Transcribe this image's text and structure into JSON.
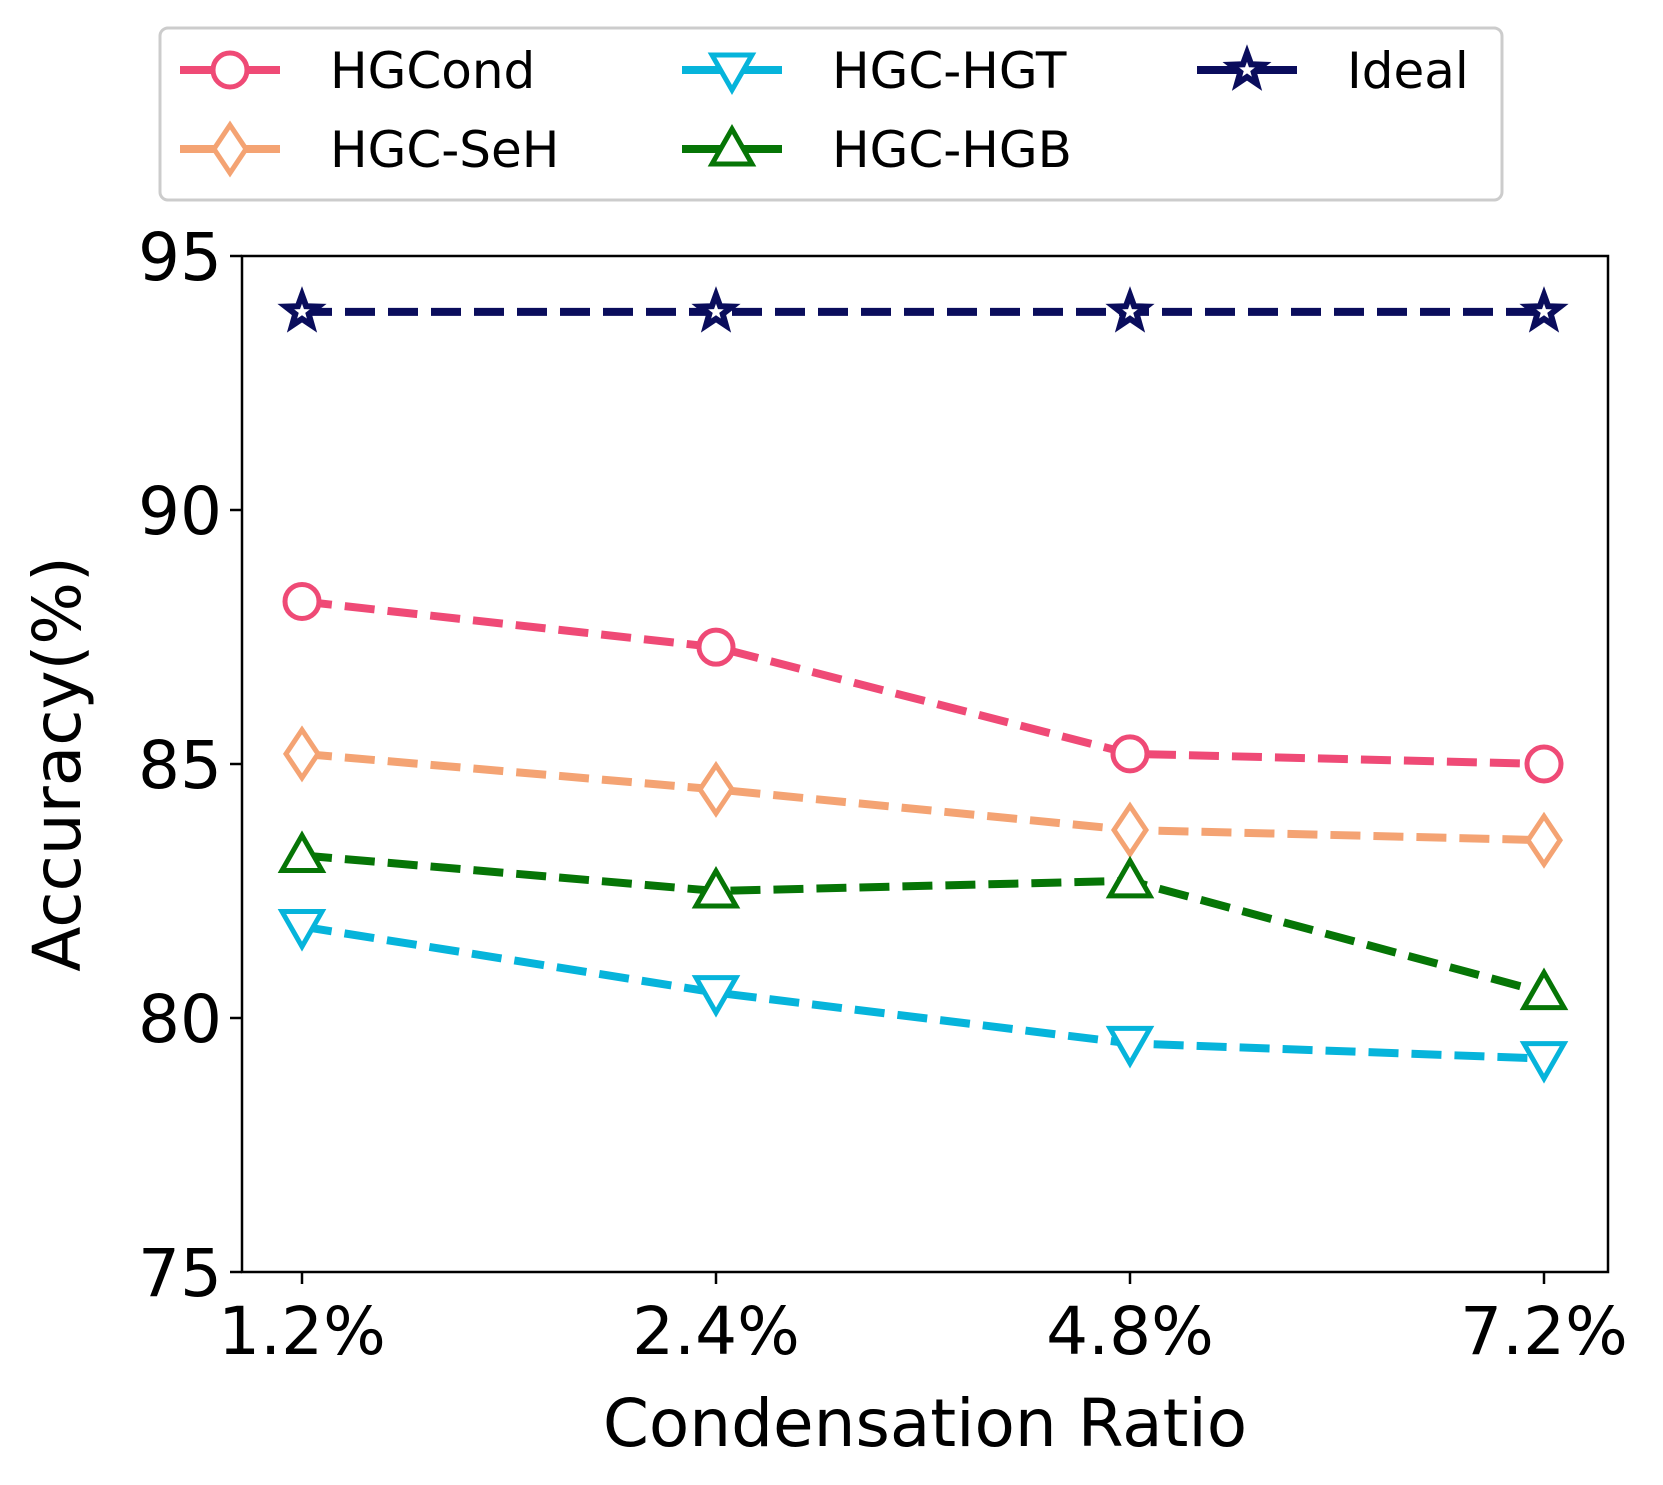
{
  "chart_data": {
    "type": "line",
    "title": "",
    "xlabel": "Condensation Ratio",
    "ylabel": "Accuracy(%)",
    "categories": [
      "1.2%",
      "2.4%",
      "4.8%",
      "7.2%"
    ],
    "ylim": [
      75,
      95
    ],
    "yticks": [
      75,
      80,
      85,
      90,
      95
    ],
    "grid": false,
    "legend_position": "top",
    "series": [
      {
        "name": "HGCond",
        "values": [
          88.2,
          87.3,
          85.2,
          85.0
        ],
        "color": "#ef4a76",
        "marker": "circle"
      },
      {
        "name": "HGC-SeH",
        "values": [
          85.2,
          84.5,
          83.7,
          83.5
        ],
        "color": "#f4a373",
        "marker": "diamond"
      },
      {
        "name": "HGC-HGT",
        "values": [
          81.8,
          80.5,
          79.5,
          79.2
        ],
        "color": "#06b4db",
        "marker": "triangle-down"
      },
      {
        "name": "HGC-HGB",
        "values": [
          83.2,
          82.5,
          82.7,
          80.5
        ],
        "color": "#067506",
        "marker": "triangle-up"
      },
      {
        "name": "Ideal",
        "values": [
          93.9,
          93.9,
          93.9,
          93.9
        ],
        "color": "#0a0d5c",
        "marker": "star"
      }
    ]
  }
}
